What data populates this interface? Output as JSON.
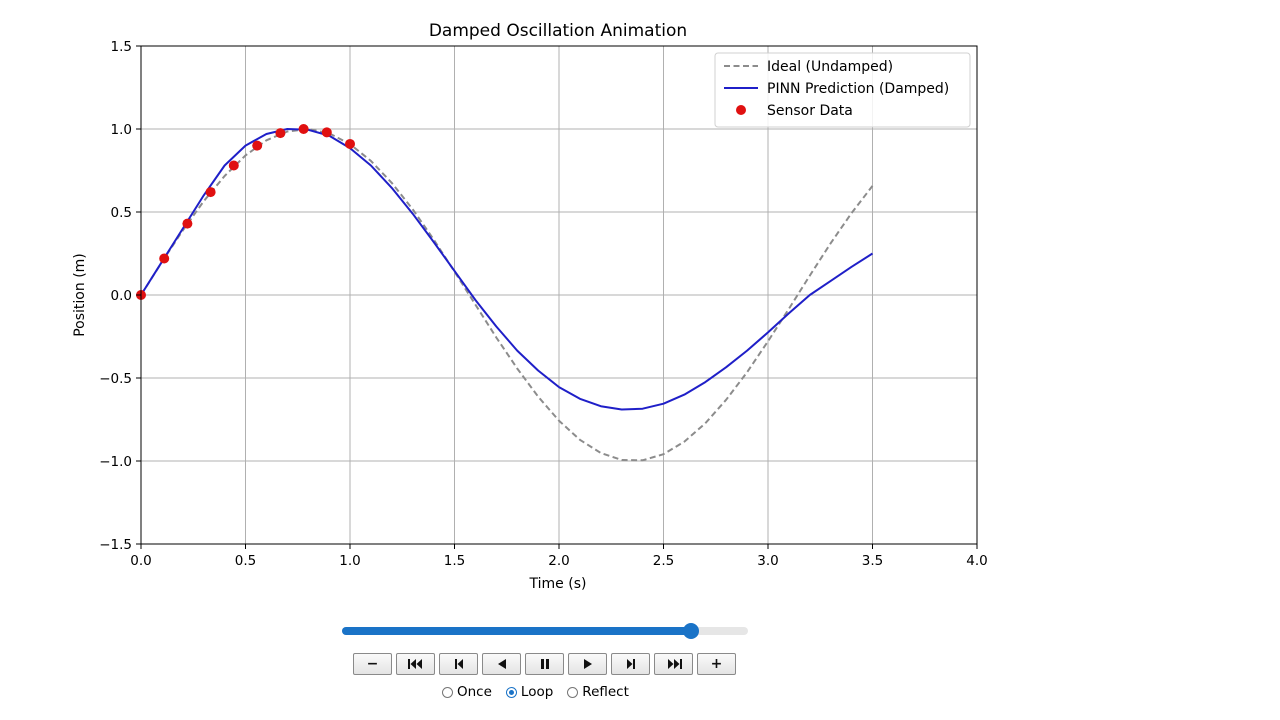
{
  "chart_data": {
    "type": "line",
    "title": "Damped Oscillation Animation",
    "xlabel": "Time (s)",
    "ylabel": "Position (m)",
    "xlim": [
      0,
      4
    ],
    "ylim": [
      -1.5,
      1.5
    ],
    "xticks": [
      0.0,
      0.5,
      1.0,
      1.5,
      2.0,
      2.5,
      3.0,
      3.5,
      4.0
    ],
    "xtick_labels": [
      "0.0",
      "0.5",
      "1.0",
      "1.5",
      "2.0",
      "2.5",
      "3.0",
      "3.5",
      "4.0"
    ],
    "yticks": [
      -1.5,
      -1.0,
      -0.5,
      0.0,
      0.5,
      1.0,
      1.5
    ],
    "ytick_labels": [
      "−1.5",
      "−1.0",
      "−0.5",
      "0.0",
      "0.5",
      "1.0",
      "1.5"
    ],
    "grid": true,
    "legend_position": "top-right",
    "series": [
      {
        "name": "Ideal (Undamped)",
        "style": "dashed",
        "color": "#8c8c8c",
        "x": [
          0.0,
          0.1,
          0.2,
          0.3,
          0.4,
          0.5,
          0.6,
          0.7,
          0.8,
          0.9,
          1.0,
          1.1,
          1.2,
          1.3,
          1.4,
          1.5,
          1.6,
          1.7,
          1.8,
          1.9,
          2.0,
          2.1,
          2.2,
          2.3,
          2.4,
          2.5,
          2.6,
          2.7,
          2.8,
          2.9,
          3.0,
          3.1,
          3.2,
          3.3,
          3.4,
          3.5
        ],
        "y": [
          0.0,
          0.199,
          0.389,
          0.565,
          0.717,
          0.841,
          0.932,
          0.985,
          1.0,
          0.974,
          0.909,
          0.808,
          0.675,
          0.516,
          0.335,
          0.141,
          -0.058,
          -0.256,
          -0.443,
          -0.612,
          -0.757,
          -0.872,
          -0.952,
          -0.994,
          -0.996,
          -0.959,
          -0.883,
          -0.773,
          -0.631,
          -0.465,
          -0.279,
          -0.083,
          0.117,
          0.312,
          0.494,
          0.657
        ]
      },
      {
        "name": "PINN Prediction (Damped)",
        "style": "solid",
        "color": "#1f1fc8",
        "x": [
          0.0,
          0.1,
          0.2,
          0.3,
          0.4,
          0.5,
          0.6,
          0.7,
          0.8,
          0.9,
          1.0,
          1.1,
          1.2,
          1.3,
          1.4,
          1.5,
          1.6,
          1.7,
          1.8,
          1.9,
          2.0,
          2.1,
          2.2,
          2.3,
          2.4,
          2.5,
          2.6,
          2.7,
          2.8,
          2.9,
          3.0,
          3.1,
          3.2,
          3.3,
          3.4,
          3.5
        ],
        "y": [
          0.0,
          0.2,
          0.4,
          0.6,
          0.78,
          0.9,
          0.97,
          1.0,
          0.995,
          0.96,
          0.885,
          0.78,
          0.645,
          0.49,
          0.32,
          0.145,
          -0.03,
          -0.19,
          -0.335,
          -0.455,
          -0.555,
          -0.625,
          -0.67,
          -0.69,
          -0.685,
          -0.655,
          -0.6,
          -0.525,
          -0.435,
          -0.335,
          -0.225,
          -0.11,
          0.0,
          0.085,
          0.17,
          0.25
        ]
      },
      {
        "name": "Sensor Data",
        "style": "markers",
        "color": "#e01010",
        "x": [
          0.0,
          0.111,
          0.222,
          0.333,
          0.444,
          0.556,
          0.667,
          0.778,
          0.889,
          1.0
        ],
        "y": [
          0.0,
          0.22,
          0.43,
          0.62,
          0.78,
          0.9,
          0.975,
          1.0,
          0.98,
          0.91
        ]
      }
    ]
  },
  "player": {
    "progress": 0.86,
    "accent_color": "#1a73c7",
    "buttons": [
      {
        "name": "decrease-speed-button",
        "icon": "minus-icon",
        "label": "−"
      },
      {
        "name": "first-frame-button",
        "icon": "skip-to-start-icon"
      },
      {
        "name": "step-back-button",
        "icon": "step-back-icon"
      },
      {
        "name": "play-reverse-button",
        "icon": "play-reverse-icon"
      },
      {
        "name": "pause-button",
        "icon": "pause-icon"
      },
      {
        "name": "play-button",
        "icon": "play-icon"
      },
      {
        "name": "step-forward-button",
        "icon": "step-forward-icon"
      },
      {
        "name": "last-frame-button",
        "icon": "skip-to-end-icon"
      },
      {
        "name": "increase-speed-button",
        "icon": "plus-icon",
        "label": "+"
      }
    ],
    "modes": {
      "once_label": "Once",
      "loop_label": "Loop",
      "reflect_label": "Reflect",
      "selected": "Loop"
    }
  }
}
